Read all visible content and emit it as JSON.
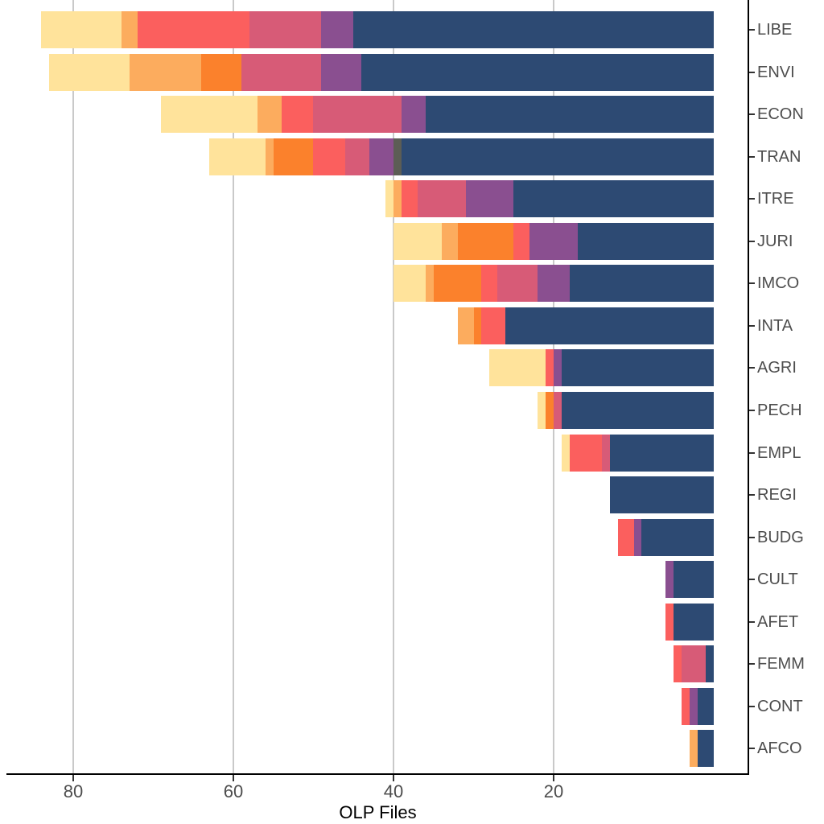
{
  "chart_data": {
    "type": "bar",
    "variant": "horizontal-stacked",
    "title": "",
    "xlabel": "OLP Files",
    "ylabel": "",
    "x_axis_reversed": true,
    "x_ticks": [
      80,
      60,
      40,
      20
    ],
    "xlim": [
      0,
      88
    ],
    "grid": "vertical-major-only",
    "legend": "none",
    "categories": [
      "LIBE",
      "ENVI",
      "ECON",
      "TRAN",
      "ITRE",
      "JURI",
      "IMCO",
      "INTA",
      "AGRI",
      "PECH",
      "EMPL",
      "REGI",
      "BUDG",
      "CULT",
      "AFET",
      "FEMM",
      "CONT",
      "AFCO"
    ],
    "totals": [
      84,
      83,
      69,
      63,
      41,
      40,
      40,
      32,
      28,
      22,
      19,
      13,
      12,
      6,
      6,
      5,
      4,
      3
    ],
    "series": [
      {
        "name": "segment-yellow",
        "color": "#FFE39B",
        "values": [
          10,
          10,
          12,
          7,
          1,
          6,
          4,
          0,
          7,
          1,
          1,
          0,
          0,
          0,
          0,
          0,
          0,
          0
        ]
      },
      {
        "name": "segment-light-orange",
        "color": "#FCAC5E",
        "values": [
          2,
          9,
          3,
          1,
          1,
          2,
          1,
          2,
          0,
          0,
          0,
          0,
          0,
          0,
          0,
          0,
          0,
          1
        ]
      },
      {
        "name": "segment-orange",
        "color": "#FB812C",
        "values": [
          0,
          5,
          0,
          5,
          0,
          7,
          6,
          1,
          0,
          1,
          0,
          0,
          0,
          0,
          0,
          0,
          0,
          0
        ]
      },
      {
        "name": "segment-coral",
        "color": "#FB5F5E",
        "values": [
          14,
          0,
          4,
          4,
          2,
          2,
          2,
          3,
          1,
          0,
          4,
          0,
          2,
          0,
          1,
          1,
          1,
          0
        ]
      },
      {
        "name": "segment-pink",
        "color": "#D75B77",
        "values": [
          9,
          10,
          11,
          3,
          6,
          0,
          5,
          0,
          0,
          1,
          1,
          0,
          0,
          0,
          0,
          3,
          0,
          0
        ]
      },
      {
        "name": "segment-purple",
        "color": "#8A4F90",
        "values": [
          4,
          5,
          3,
          3,
          6,
          6,
          4,
          0,
          1,
          0,
          0,
          0,
          1,
          1,
          0,
          0,
          1,
          0
        ]
      },
      {
        "name": "segment-olive-gray",
        "color": "#5C5D55",
        "values": [
          0,
          0,
          0,
          1,
          0,
          0,
          0,
          0,
          0,
          0,
          0,
          0,
          0,
          0,
          0,
          0,
          0,
          0
        ]
      },
      {
        "name": "segment-navy",
        "color": "#2D4A73",
        "values": [
          45,
          44,
          36,
          39,
          25,
          17,
          18,
          26,
          19,
          19,
          13,
          13,
          9,
          5,
          5,
          1,
          2,
          2
        ]
      }
    ],
    "axis_colors": {
      "tick_label": "#4d4d4d",
      "category_label": "#4d4d4d",
      "axis_line": "#000000",
      "gridline": "#c9c9c9",
      "title": "#000000"
    }
  }
}
